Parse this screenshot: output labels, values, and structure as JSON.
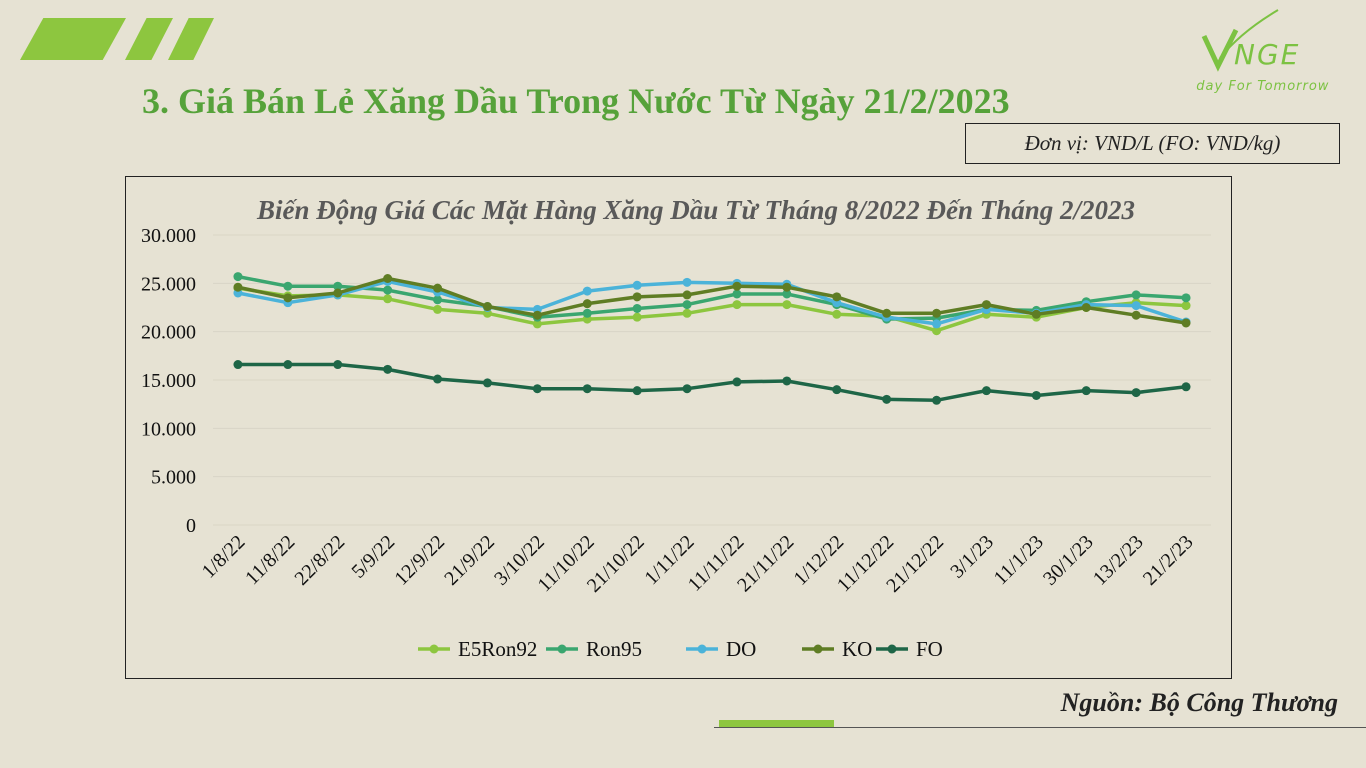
{
  "slide": {
    "title": "3. Giá Bán Lẻ Xăng Dầu Trong Nước Từ Ngày 21/2/2023",
    "unit_label": "Đơn vị: VND/L (FO: VND/kg)",
    "source": "Nguồn: Bộ Công Thương"
  },
  "logo": {
    "brand": "VNGE",
    "tagline": "Today For Tomorrow",
    "color": "#7cc242"
  },
  "colors": {
    "background": "#e6e2d3",
    "title": "#56a23a",
    "accent": "#8dc63f",
    "gridline": "#d9d5c6"
  },
  "chart_data": {
    "type": "line",
    "title": "Biến Động Giá Các Mặt Hàng Xăng Dầu Từ Tháng 8/2022 Đến Tháng 2/2023",
    "xlabel": "",
    "ylabel": "",
    "ylim": [
      0,
      30000
    ],
    "yticks": [
      0,
      5000,
      10000,
      15000,
      20000,
      25000,
      30000
    ],
    "ytick_labels": [
      "0",
      "5.000",
      "10.000",
      "15.000",
      "20.000",
      "25.000",
      "30.000"
    ],
    "grid": true,
    "legend_position": "bottom",
    "categories": [
      "1/8/22",
      "11/8/22",
      "22/8/22",
      "5/9/22",
      "12/9/22",
      "21/9/22",
      "3/10/22",
      "11/10/22",
      "21/10/22",
      "1/11/22",
      "11/11/22",
      "21/11/22",
      "1/12/22",
      "11/12/22",
      "21/12/22",
      "3/1/23",
      "11/1/23",
      "30/1/23",
      "13/2/23",
      "21/2/23"
    ],
    "series": [
      {
        "name": "E5Ron92",
        "color": "#8dc63f",
        "values": [
          24500,
          23700,
          23800,
          23400,
          22300,
          21900,
          20800,
          21300,
          21500,
          21900,
          22800,
          22800,
          21800,
          21600,
          20100,
          21800,
          21500,
          22500,
          23000,
          22700
        ]
      },
      {
        "name": "Ron95",
        "color": "#3aa66f",
        "values": [
          25700,
          24700,
          24700,
          24300,
          23300,
          22600,
          21500,
          21900,
          22400,
          22800,
          23900,
          23900,
          22800,
          21300,
          21400,
          22300,
          22200,
          23100,
          23800,
          23500
        ]
      },
      {
        "name": "DO",
        "color": "#4bb3d9",
        "values": [
          24000,
          23000,
          23800,
          25200,
          24100,
          22500,
          22300,
          24200,
          24800,
          25100,
          25000,
          24900,
          23000,
          21500,
          20800,
          22300,
          21900,
          22800,
          22700,
          21000
        ]
      },
      {
        "name": "KO",
        "color": "#5f7d24",
        "values": [
          24600,
          23500,
          24000,
          25500,
          24500,
          22600,
          21700,
          22900,
          23600,
          23800,
          24700,
          24600,
          23600,
          21900,
          21900,
          22800,
          21800,
          22500,
          21700,
          20900
        ]
      },
      {
        "name": "FO",
        "color": "#1e6647",
        "values": [
          16600,
          16600,
          16600,
          16100,
          15100,
          14700,
          14100,
          14100,
          13900,
          14100,
          14800,
          14900,
          14000,
          13000,
          12900,
          13900,
          13400,
          13900,
          13700,
          14300
        ]
      }
    ]
  }
}
